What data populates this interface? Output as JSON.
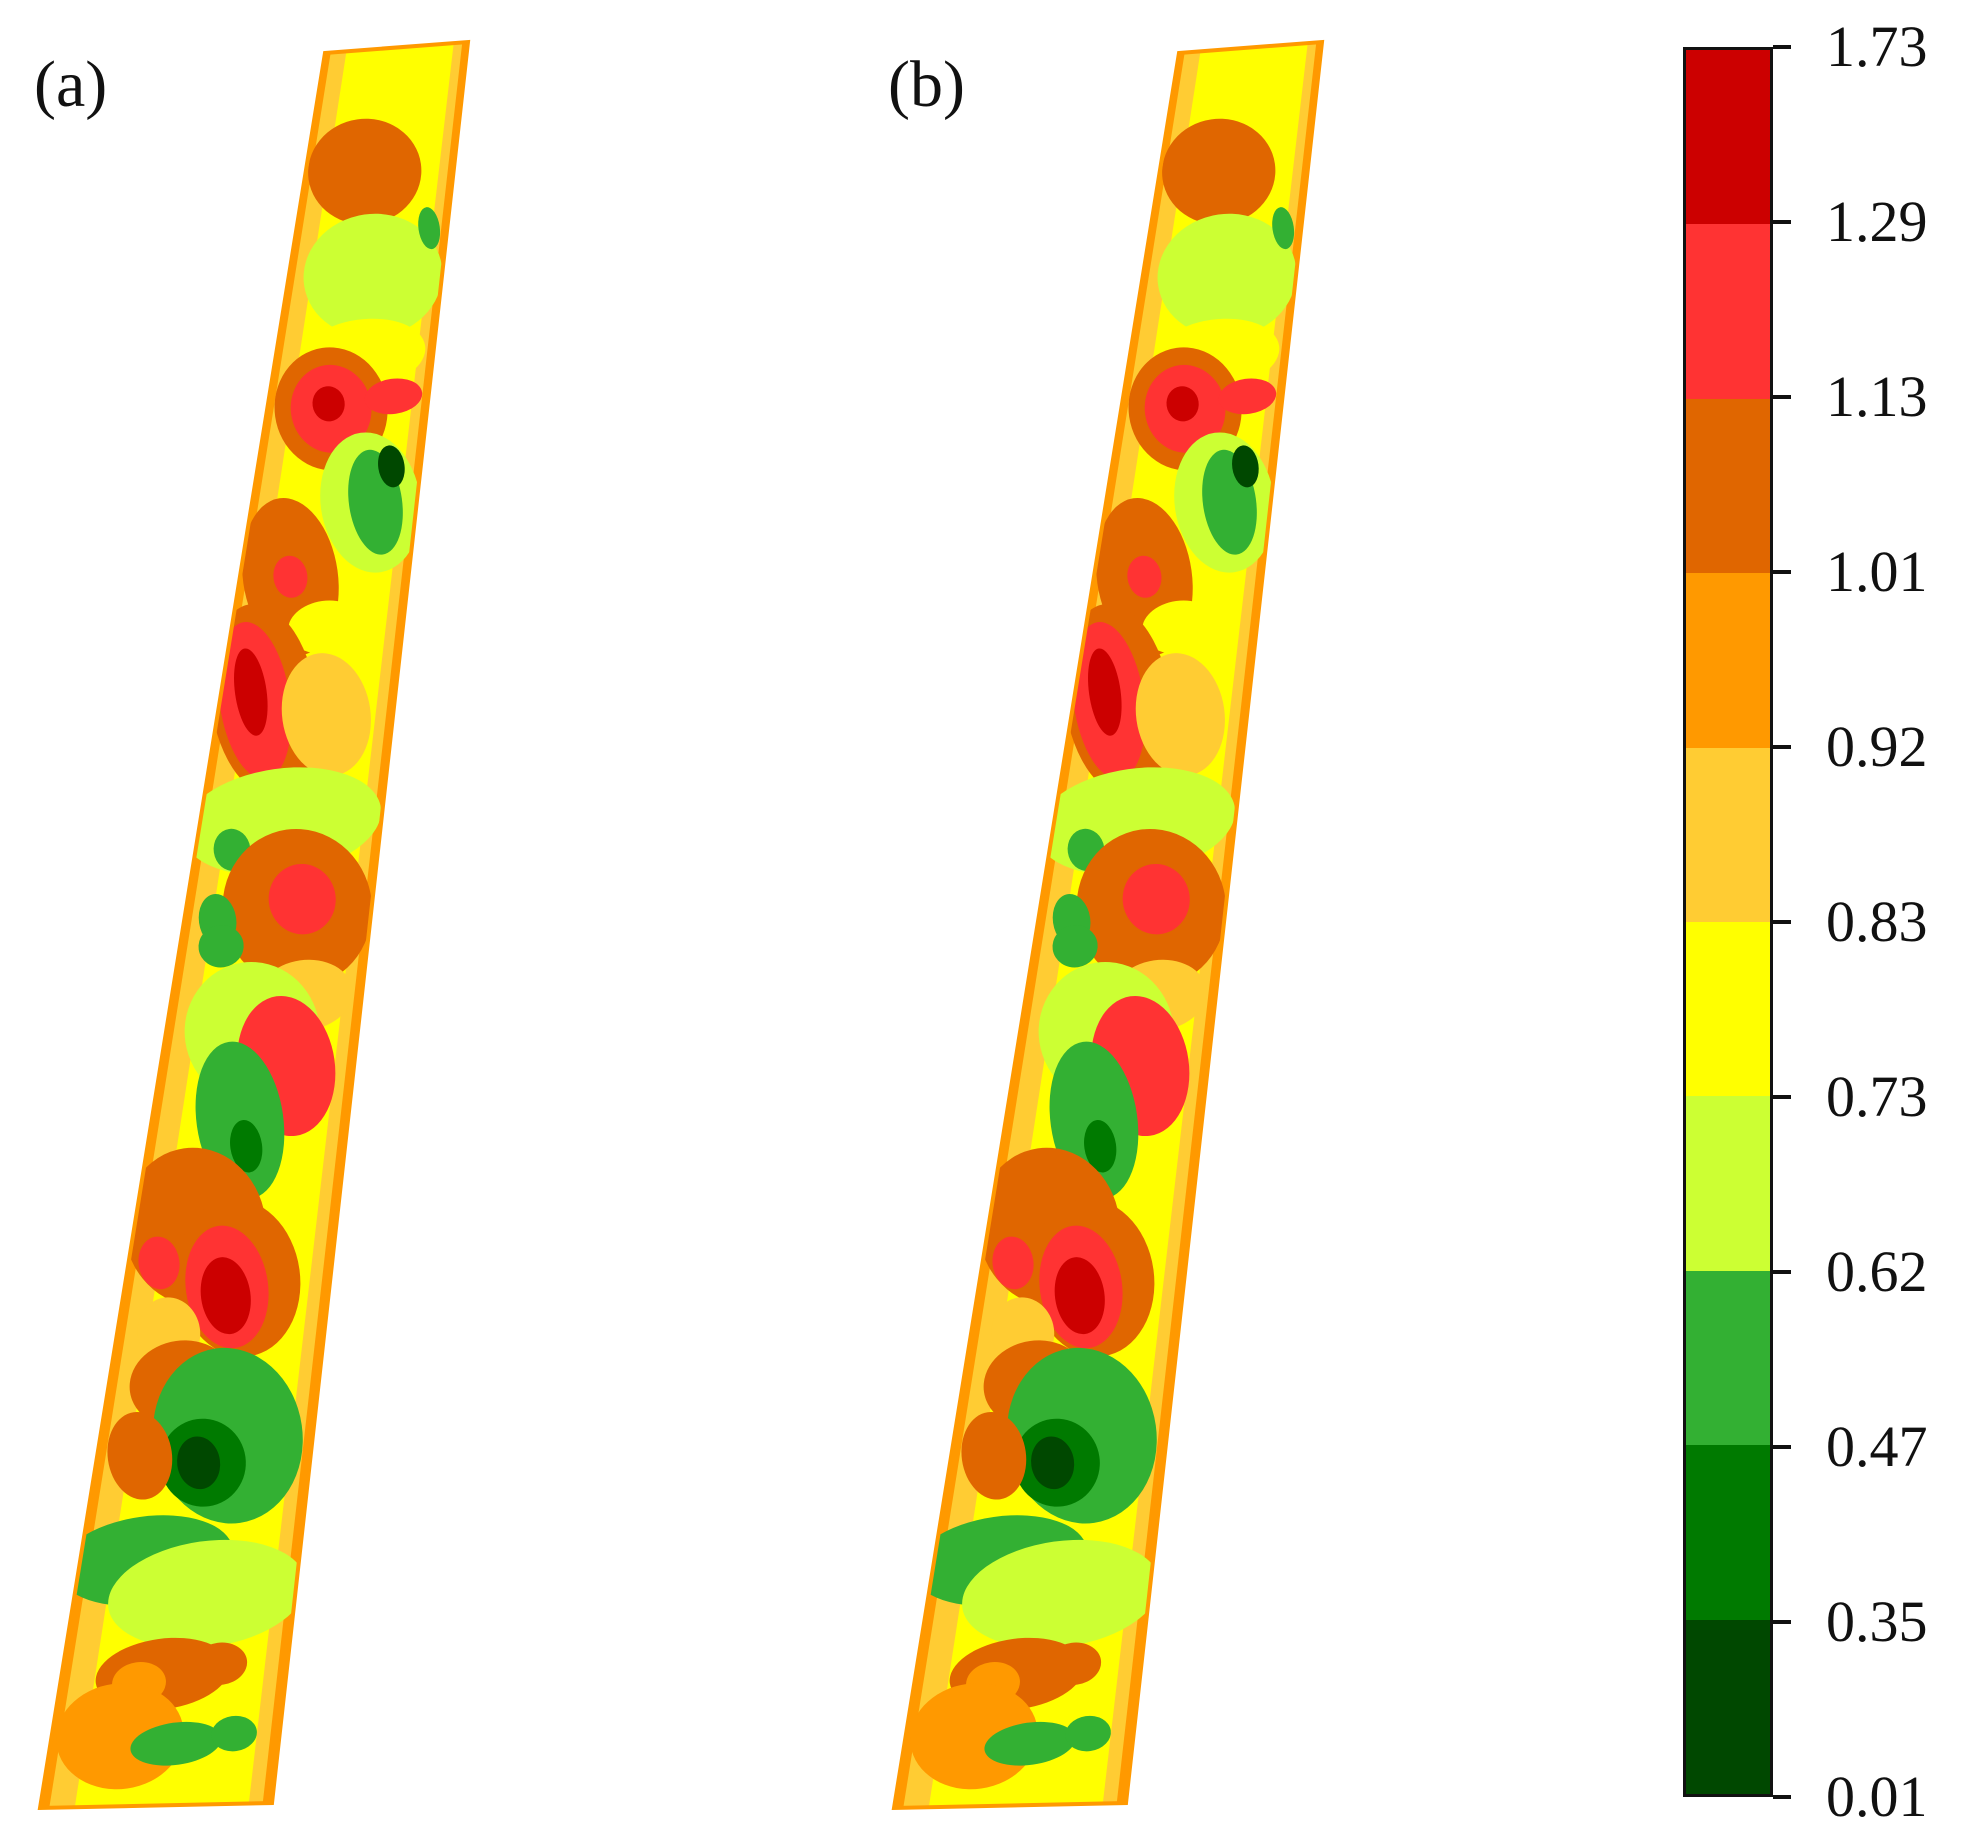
{
  "panels": [
    {
      "label": "(a)"
    },
    {
      "label": "(b)"
    }
  ],
  "legend": {
    "breaks": [
      "0.01",
      "0.35",
      "0.47",
      "0.62",
      "0.73",
      "0.83",
      "0.92",
      "1.01",
      "1.13",
      "1.29",
      "1.73"
    ],
    "colors": [
      "#004800",
      "#007a00",
      "#33b033",
      "#ccff33",
      "#ffff00",
      "#ffcc33",
      "#ff9900",
      "#e06600",
      "#ff3333",
      "#cc0000"
    ]
  },
  "colors": {
    "dark_green": "#004800",
    "green": "#007a00",
    "mid_green": "#33b033",
    "yellow_green": "#ccff33",
    "yellow": "#ffff00",
    "light_orange": "#ffcc33",
    "orange": "#ff9900",
    "dark_orange": "#e06600",
    "red": "#ff3333",
    "dark_red": "#cc0000"
  }
}
